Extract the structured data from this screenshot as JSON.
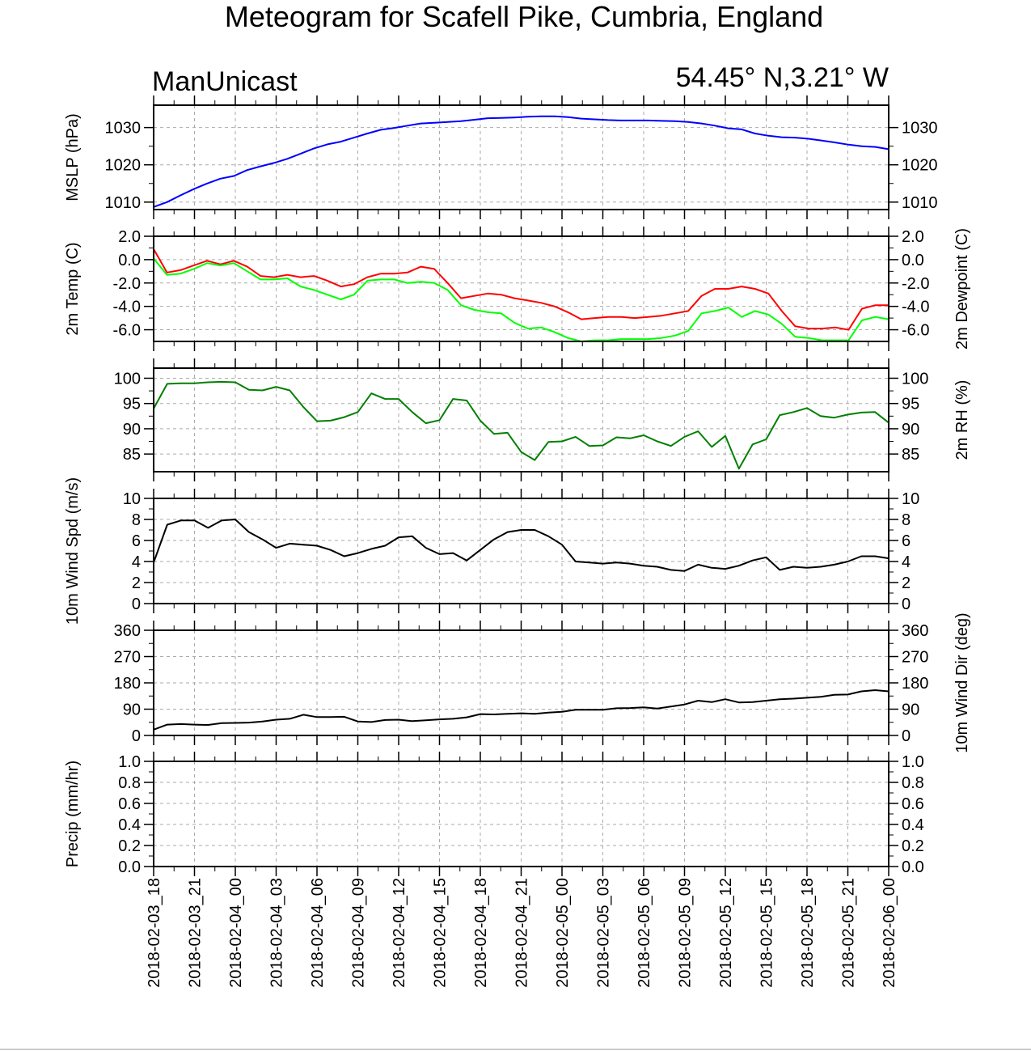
{
  "title": "Meteogram for Scafell Pike, Cumbria, England",
  "model": "ManUnicast",
  "location": "54.45° N,3.21° W",
  "chart_data": [
    {
      "id": "mslp",
      "type": "line",
      "ylabel_left": "MSLP (hPa)",
      "ylabel_right": "",
      "ylim": [
        1008,
        1036
      ],
      "yticks": [
        1010,
        1020,
        1030
      ],
      "ytick_labels": [
        "1010",
        "1020",
        "1030"
      ],
      "right_ticks": true,
      "series": [
        {
          "color": "#0000ff",
          "values": [
            1008.7,
            1010.0,
            1011.8,
            1013.5,
            1015.0,
            1016.3,
            1017.0,
            1018.6,
            1019.6,
            1020.5,
            1021.6,
            1023.0,
            1024.4,
            1025.5,
            1026.2,
            1027.3,
            1028.4,
            1029.4,
            1029.9,
            1030.5,
            1031.1,
            1031.3,
            1031.5,
            1031.7,
            1032.1,
            1032.5,
            1032.6,
            1032.7,
            1032.9,
            1033.0,
            1033.0,
            1032.8,
            1032.4,
            1032.2,
            1032.0,
            1031.9,
            1031.9,
            1031.9,
            1031.8,
            1031.7,
            1031.5,
            1031.1,
            1030.5,
            1029.8,
            1029.5,
            1028.4,
            1027.8,
            1027.4,
            1027.3,
            1027.0,
            1026.5,
            1026.0,
            1025.4,
            1025.0,
            1024.8,
            1024.2
          ]
        }
      ]
    },
    {
      "id": "temp",
      "type": "line",
      "ylabel_left": "2m Temp (C)",
      "ylabel_right": "2m Dewpoint (C)",
      "ylim": [
        -7,
        2
      ],
      "yticks": [
        -6,
        -4,
        -2,
        0,
        2
      ],
      "ytick_labels": [
        "-6.0",
        "-4.0",
        "-2.0",
        "0.0",
        "2.0"
      ],
      "right_ticks": true,
      "series": [
        {
          "color": "#ff0000",
          "values": [
            0.9,
            -1.1,
            -0.9,
            -0.5,
            -0.1,
            -0.4,
            -0.1,
            -0.6,
            -1.4,
            -1.5,
            -1.3,
            -1.5,
            -1.4,
            -1.8,
            -2.3,
            -2.1,
            -1.5,
            -1.2,
            -1.2,
            -1.1,
            -0.6,
            -0.8,
            -2.0,
            -3.3,
            -3.1,
            -2.9,
            -3.0,
            -3.3,
            -3.5,
            -3.7,
            -4.0,
            -4.5,
            -5.1,
            -5.0,
            -4.9,
            -4.9,
            -5.0,
            -4.9,
            -4.8,
            -4.6,
            -4.4,
            -3.1,
            -2.5,
            -2.5,
            -2.3,
            -2.5,
            -2.9,
            -4.4,
            -5.7,
            -5.9,
            -5.9,
            -5.8,
            -6.0,
            -4.2,
            -3.9,
            -3.9
          ]
        },
        {
          "color": "#00ff00",
          "values": [
            0.1,
            -1.3,
            -1.2,
            -0.8,
            -0.3,
            -0.5,
            -0.3,
            -1.0,
            -1.7,
            -1.7,
            -1.6,
            -2.3,
            -2.6,
            -3.0,
            -3.4,
            -3.0,
            -1.8,
            -1.7,
            -1.7,
            -2.0,
            -1.9,
            -2.0,
            -2.6,
            -3.9,
            -4.3,
            -4.5,
            -4.6,
            -5.4,
            -5.9,
            -5.8,
            -6.2,
            -6.7,
            -7.0,
            -6.9,
            -6.9,
            -6.8,
            -6.8,
            -6.8,
            -6.7,
            -6.5,
            -6.1,
            -4.6,
            -4.4,
            -4.1,
            -4.9,
            -4.4,
            -4.7,
            -5.5,
            -6.6,
            -6.7,
            -6.9,
            -6.9,
            -6.9,
            -5.2,
            -4.9,
            -5.1
          ]
        }
      ]
    },
    {
      "id": "rh",
      "type": "line",
      "ylabel_left": "",
      "ylabel_right": "2m RH (%)",
      "ylim": [
        81.5,
        102
      ],
      "yticks": [
        85,
        90,
        95,
        100
      ],
      "ytick_labels": [
        "85",
        "90",
        "95",
        "100"
      ],
      "right_ticks": true,
      "series": [
        {
          "color": "#008000",
          "values": [
            94.0,
            98.9,
            99.0,
            99.0,
            99.2,
            99.3,
            99.2,
            97.7,
            97.6,
            98.3,
            97.6,
            94.3,
            91.5,
            91.6,
            92.3,
            93.3,
            97.0,
            95.9,
            95.9,
            93.3,
            91.1,
            91.7,
            95.9,
            95.6,
            91.6,
            89.0,
            89.2,
            85.4,
            83.8,
            87.4,
            87.5,
            88.4,
            86.6,
            86.7,
            88.3,
            88.1,
            88.7,
            87.5,
            86.6,
            88.4,
            89.5,
            86.4,
            88.6,
            82.1,
            86.9,
            87.9,
            92.7,
            93.3,
            94.1,
            92.5,
            92.2,
            92.8,
            93.2,
            93.3,
            91.2
          ]
        }
      ]
    },
    {
      "id": "wspd",
      "type": "line",
      "ylabel_left": "10m Wind Spd (m/s)",
      "ylabel_right": "",
      "ylim": [
        0,
        10
      ],
      "yticks": [
        0,
        2,
        4,
        6,
        8,
        10
      ],
      "ytick_labels": [
        "0",
        "2",
        "4",
        "6",
        "8",
        "10"
      ],
      "right_ticks": true,
      "series": [
        {
          "color": "#000000",
          "values": [
            3.9,
            7.5,
            7.9,
            7.9,
            7.2,
            7.9,
            8.0,
            6.8,
            6.1,
            5.3,
            5.7,
            5.6,
            5.5,
            5.1,
            4.5,
            4.8,
            5.2,
            5.5,
            6.3,
            6.4,
            5.3,
            4.7,
            4.8,
            4.1,
            5.1,
            6.1,
            6.8,
            7.0,
            7.0,
            6.4,
            5.6,
            4.0,
            3.9,
            3.8,
            3.9,
            3.8,
            3.6,
            3.5,
            3.2,
            3.1,
            3.7,
            3.4,
            3.3,
            3.6,
            4.1,
            4.4,
            3.2,
            3.5,
            3.4,
            3.5,
            3.7,
            4.0,
            4.5,
            4.5,
            4.3
          ]
        }
      ]
    },
    {
      "id": "wdir",
      "type": "line",
      "ylabel_left": "",
      "ylabel_right": "10m Wind Dir (deg)",
      "ylim": [
        0,
        360
      ],
      "yticks": [
        0,
        90,
        180,
        270,
        360
      ],
      "ytick_labels": [
        "0",
        "90",
        "180",
        "270",
        "360"
      ],
      "right_ticks": true,
      "series": [
        {
          "color": "#000000",
          "values": [
            20,
            37,
            39,
            37,
            36,
            42,
            43,
            44,
            48,
            54,
            57,
            71,
            63,
            63,
            64,
            48,
            46,
            53,
            54,
            49,
            52,
            55,
            57,
            62,
            73,
            72,
            74,
            76,
            74,
            78,
            81,
            88,
            88,
            88,
            93,
            94,
            96,
            92,
            99,
            106,
            119,
            114,
            124,
            113,
            114,
            119,
            124,
            126,
            129,
            132,
            139,
            140,
            151,
            155,
            151
          ]
        }
      ]
    },
    {
      "id": "precip",
      "type": "line",
      "ylabel_left": "Precip (mm/hr)",
      "ylabel_right": "",
      "ylim": [
        0,
        1
      ],
      "yticks": [
        0,
        0.2,
        0.4,
        0.6,
        0.8,
        1.0
      ],
      "ytick_labels": [
        "0.0",
        "0.2",
        "0.4",
        "0.6",
        "0.8",
        "1.0"
      ],
      "right_ticks": true,
      "series": []
    }
  ],
  "x_axis": {
    "labels": [
      "2018-02-03_18",
      "2018-02-03_21",
      "2018-02-04_00",
      "2018-02-04_03",
      "2018-02-04_06",
      "2018-02-04_09",
      "2018-02-04_12",
      "2018-02-04_15",
      "2018-02-04_18",
      "2018-02-04_21",
      "2018-02-05_00",
      "2018-02-05_03",
      "2018-02-05_06",
      "2018-02-05_09",
      "2018-02-05_12",
      "2018-02-05_15",
      "2018-02-05_18",
      "2018-02-05_21",
      "2018-02-06_00"
    ],
    "grid": true
  }
}
